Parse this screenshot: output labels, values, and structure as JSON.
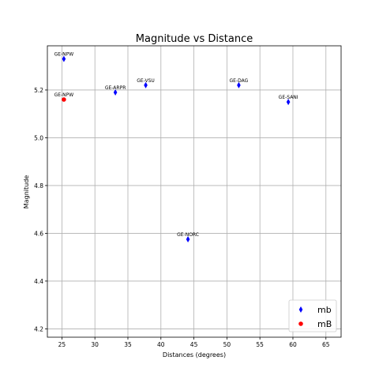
{
  "chart_data": {
    "type": "scatter",
    "title": "Magnitude vs Distance",
    "xlabel": "Distances (degrees)",
    "ylabel": "Magnitude",
    "xlim": [
      22.8,
      67.3
    ],
    "ylim": [
      4.165,
      5.385
    ],
    "xticks": [
      25,
      30,
      35,
      40,
      45,
      50,
      55,
      60,
      65
    ],
    "yticks": [
      4.2,
      4.4,
      4.6,
      4.8,
      5.0,
      5.2
    ],
    "grid": true,
    "legend_position": "lower-right",
    "series": [
      {
        "name": "mb",
        "color": "#0000ff",
        "marker": "thin-diamond",
        "points": [
          {
            "label": "GE-NPW",
            "x": 25.3,
            "y": 5.33
          },
          {
            "label": "GE-ARPR",
            "x": 33.1,
            "y": 5.19
          },
          {
            "label": "GE-VSU",
            "x": 37.7,
            "y": 5.22
          },
          {
            "label": "GE-DAG",
            "x": 51.8,
            "y": 5.22
          },
          {
            "label": "GE-SANI",
            "x": 59.3,
            "y": 5.15
          },
          {
            "label": "GE-NORC",
            "x": 44.1,
            "y": 4.575
          }
        ]
      },
      {
        "name": "mB",
        "color": "#ff0000",
        "marker": "circle",
        "points": [
          {
            "label": "GE-NPW",
            "x": 25.3,
            "y": 5.16
          }
        ]
      }
    ]
  }
}
